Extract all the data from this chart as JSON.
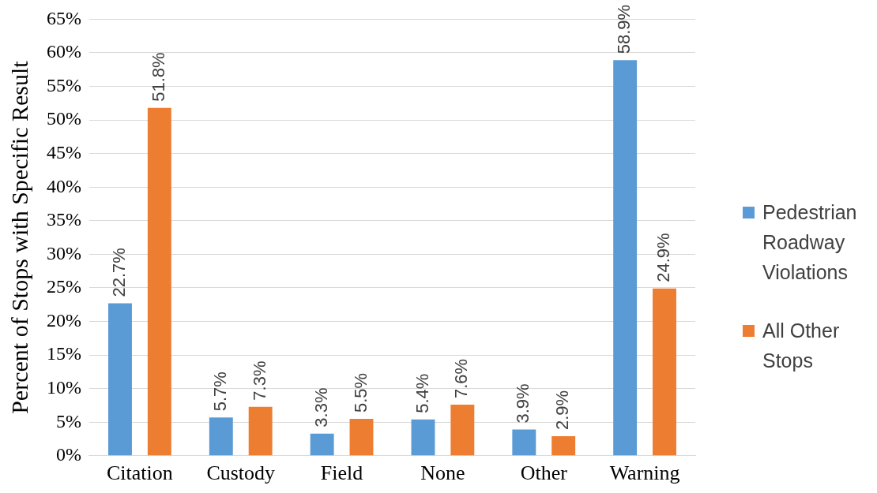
{
  "chart_data": {
    "type": "bar",
    "ylabel": "Percent of Stops with Specific Result",
    "categories": [
      "Citation",
      "Custody",
      "Field",
      "None",
      "Other",
      "Warning"
    ],
    "series": [
      {
        "name": "Pedestrian Roadway Violations",
        "color": "#5b9bd5",
        "values": [
          22.7,
          5.7,
          3.3,
          5.4,
          3.9,
          58.9
        ],
        "value_labels": [
          "22.7%",
          "5.7%",
          "3.3%",
          "5.4%",
          "3.9%",
          "58.9%"
        ]
      },
      {
        "name": "All Other Stops",
        "color": "#ed7d31",
        "values": [
          51.8,
          7.3,
          5.5,
          7.6,
          2.9,
          24.9
        ],
        "value_labels": [
          "51.8%",
          "7.3%",
          "5.5%",
          "7.6%",
          "2.9%",
          "24.9%"
        ]
      }
    ],
    "ylim": [
      0,
      65
    ],
    "yticks": [
      {
        "value": 0,
        "label": "0%"
      },
      {
        "value": 5,
        "label": "5%"
      },
      {
        "value": 10,
        "label": "10%"
      },
      {
        "value": 15,
        "label": "15%"
      },
      {
        "value": 20,
        "label": "20%"
      },
      {
        "value": 25,
        "label": "25%"
      },
      {
        "value": 30,
        "label": "30%"
      },
      {
        "value": 35,
        "label": "35%"
      },
      {
        "value": 40,
        "label": "40%"
      },
      {
        "value": 45,
        "label": "45%"
      },
      {
        "value": 50,
        "label": "50%"
      },
      {
        "value": 55,
        "label": "55%"
      },
      {
        "value": 60,
        "label": "60%"
      },
      {
        "value": 65,
        "label": "65%"
      }
    ],
    "grid": "y",
    "legend": "right"
  }
}
